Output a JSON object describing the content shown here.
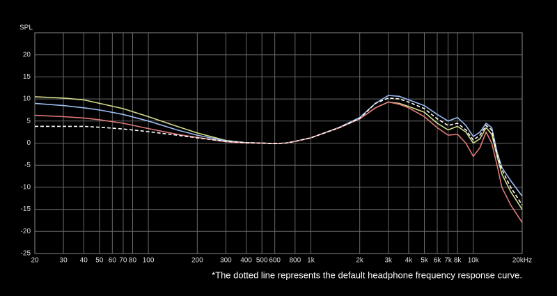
{
  "chart_data": {
    "type": "line",
    "ylabel": "SPL",
    "footnote": "*The dotted line represents the default headphone frequency response curve.",
    "xscale": "log",
    "grid": true,
    "x": [
      20,
      30,
      40,
      50,
      70,
      100,
      150,
      200,
      300,
      400,
      500,
      600,
      700,
      800,
      1000,
      1500,
      2000,
      2500,
      3000,
      3500,
      4000,
      5000,
      6000,
      7000,
      8000,
      9000,
      10000,
      11000,
      12000,
      13000,
      14000,
      15000,
      17000,
      20000
    ],
    "series": [
      {
        "color": "#d6dc8a",
        "style": "solid",
        "values": [
          10.5,
          10.2,
          9.8,
          9,
          7.8,
          6,
          3.8,
          2.3,
          0.6,
          0.1,
          0,
          -0.1,
          0,
          0.4,
          1.2,
          3.5,
          5.5,
          8,
          9.3,
          9,
          8.3,
          7,
          4.5,
          3,
          3.8,
          2.5,
          0,
          1,
          3.5,
          2,
          -3,
          -7,
          -11,
          -15
        ]
      },
      {
        "color": "#9cbcf0",
        "style": "solid",
        "values": [
          9,
          8.5,
          8,
          7.5,
          6.5,
          5,
          3,
          1.8,
          0.5,
          0.1,
          0,
          -0.1,
          0,
          0.4,
          1.2,
          3.6,
          5.8,
          9,
          10.8,
          10.6,
          9.8,
          8.5,
          6.5,
          5,
          5.8,
          4,
          1.5,
          2.5,
          4.5,
          3.5,
          -2,
          -5.5,
          -8.5,
          -12
        ]
      },
      {
        "color": "#e07a78",
        "style": "solid",
        "values": [
          6.3,
          6,
          5.7,
          5.3,
          4.5,
          3.3,
          2,
          1.3,
          0.3,
          0,
          0,
          -0.1,
          0,
          0.4,
          1.2,
          3.5,
          5.5,
          8,
          9.3,
          8.8,
          8,
          6,
          3.5,
          1.8,
          2,
          0,
          -3,
          -1,
          2.5,
          0,
          -5,
          -10,
          -14,
          -18
        ]
      },
      {
        "color": "#ffffff",
        "style": "dashed",
        "values": [
          3.8,
          3.8,
          3.8,
          3.6,
          3.2,
          2.6,
          1.8,
          1.2,
          0.4,
          0.1,
          0,
          -0.1,
          0,
          0.4,
          1.2,
          3.5,
          5.6,
          9,
          10.2,
          10,
          9.3,
          7.8,
          5.5,
          4,
          4.5,
          3,
          0.7,
          1.8,
          4,
          3,
          -2.5,
          -6,
          -10,
          -14
        ]
      }
    ],
    "xlim": [
      20,
      20000
    ],
    "xticks": [
      20,
      30,
      40,
      50,
      60,
      70,
      80,
      100,
      200,
      300,
      400,
      500,
      600,
      800,
      {
        "value": 1000,
        "label": "1k"
      },
      {
        "value": 2000,
        "label": "2k"
      },
      {
        "value": 3000,
        "label": "3k"
      },
      {
        "value": 4000,
        "label": "4k"
      },
      {
        "value": 5000,
        "label": "5k"
      },
      {
        "value": 6000,
        "label": "6k"
      },
      {
        "value": 7000,
        "label": "7k"
      },
      {
        "value": 8000,
        "label": "8k"
      },
      {
        "value": 10000,
        "label": "10k"
      },
      {
        "value": 20000,
        "label": "20kHz"
      }
    ],
    "ylim": [
      -25,
      25
    ],
    "yticks": [
      20,
      15,
      10,
      5,
      0,
      -5,
      -10,
      -15,
      -20,
      -25
    ]
  }
}
